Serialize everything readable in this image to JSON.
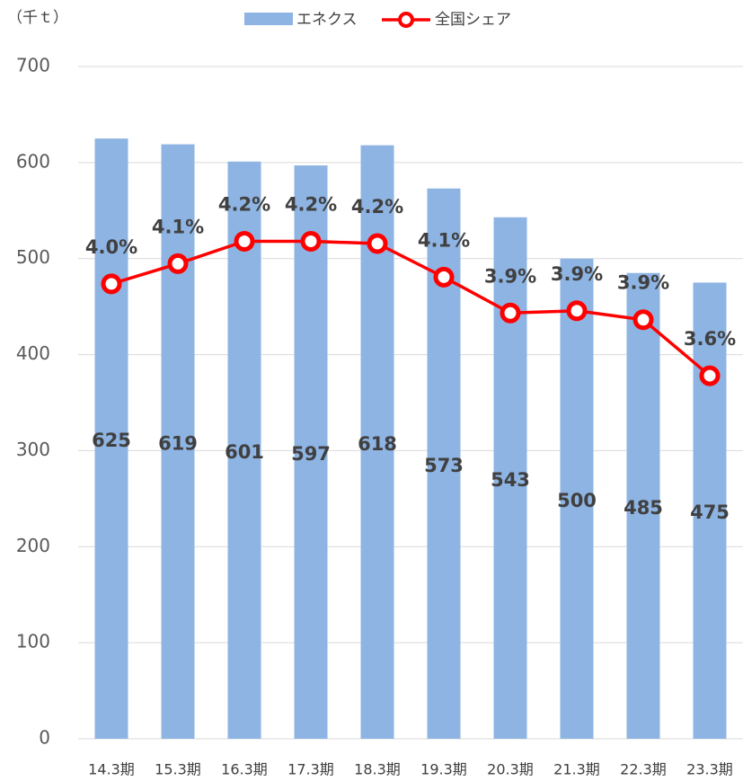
{
  "chart_data": {
    "type": "bar_line",
    "y_axis_label": "（千ｔ）",
    "categories": [
      "14.3期",
      "15.3期",
      "16.3期",
      "17.3期",
      "18.3期",
      "19.3期",
      "20.3期",
      "21.3期",
      "22.3期",
      "23.3期"
    ],
    "series": [
      {
        "name": "エネクス",
        "type": "bar",
        "color": "#8eb4e3",
        "values": [
          625,
          619,
          601,
          597,
          618,
          573,
          543,
          500,
          485,
          475
        ]
      },
      {
        "name": "全国シェア",
        "type": "line",
        "axis": "y2",
        "color": "#ff0000",
        "values": [
          4.03,
          4.12,
          4.22,
          4.22,
          4.21,
          4.06,
          3.9,
          3.91,
          3.87,
          3.62
        ],
        "value_labels": [
          "4.0%",
          "4.1%",
          "4.2%",
          "4.2%",
          "4.2%",
          "4.1%",
          "3.9%",
          "3.9%",
          "3.9%",
          "3.6%"
        ]
      }
    ],
    "ylim": [
      0,
      700
    ],
    "yticks": [
      0,
      100,
      200,
      300,
      400,
      500,
      600,
      700
    ],
    "y2lim": [
      2,
      5
    ],
    "grid": true,
    "legend": "top"
  }
}
